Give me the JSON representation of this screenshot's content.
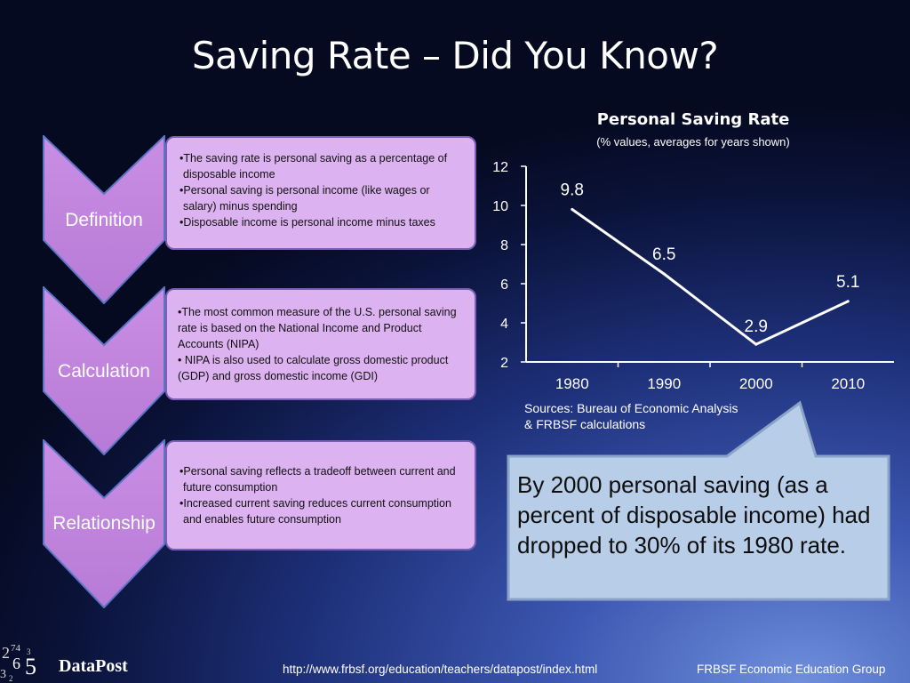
{
  "title": "Saving Rate – Did You Know?",
  "sections": [
    {
      "label": "Definition",
      "bullets": [
        "•The saving rate is personal saving as a percentage of disposable income",
        "•Personal saving is personal income (like wages or salary) minus spending",
        "•Disposable income is personal income minus taxes"
      ]
    },
    {
      "label": "Calculation",
      "bullets": [
        "•The most common measure of the U.S. personal saving rate is based on the National Income and Product Accounts (NIPA)",
        "• NIPA is also used to calculate gross domestic product (GDP) and gross domestic income (GDI)"
      ]
    },
    {
      "label": "Relationship",
      "bullets": [
        "•Personal saving reflects a tradeoff between current and future consumption",
        "•Increased current saving reduces current consumption and enables future consumption"
      ]
    }
  ],
  "chart_data": {
    "type": "line",
    "title": "Personal Saving Rate",
    "subtitle": "(% values, averages for years shown)",
    "categories": [
      "1980",
      "1990",
      "2000",
      "2010"
    ],
    "values": [
      9.8,
      6.5,
      2.9,
      5.1
    ],
    "data_labels": [
      "9.8",
      "6.5",
      "2.9",
      "5.1"
    ],
    "y_ticks": [
      "2",
      "4",
      "6",
      "8",
      "10",
      "12"
    ],
    "ylim": [
      2,
      12
    ],
    "grid": false,
    "line_color": "#ffffff"
  },
  "sources": [
    "Sources: Bureau of Economic Analysis",
    "& FRBSF calculations"
  ],
  "callout": "By 2000 personal saving (as a percent of disposable income) had dropped to 30% of its 1980 rate.",
  "footer": {
    "brand": "DataPost",
    "url": "http://www.frbsf.org/education/teachers/datapost/index.html",
    "group": "FRBSF Economic Education Group"
  },
  "colors": {
    "chevron": "#c98ee4",
    "box": "#dcb3f0",
    "callout": "#b8cde8"
  }
}
